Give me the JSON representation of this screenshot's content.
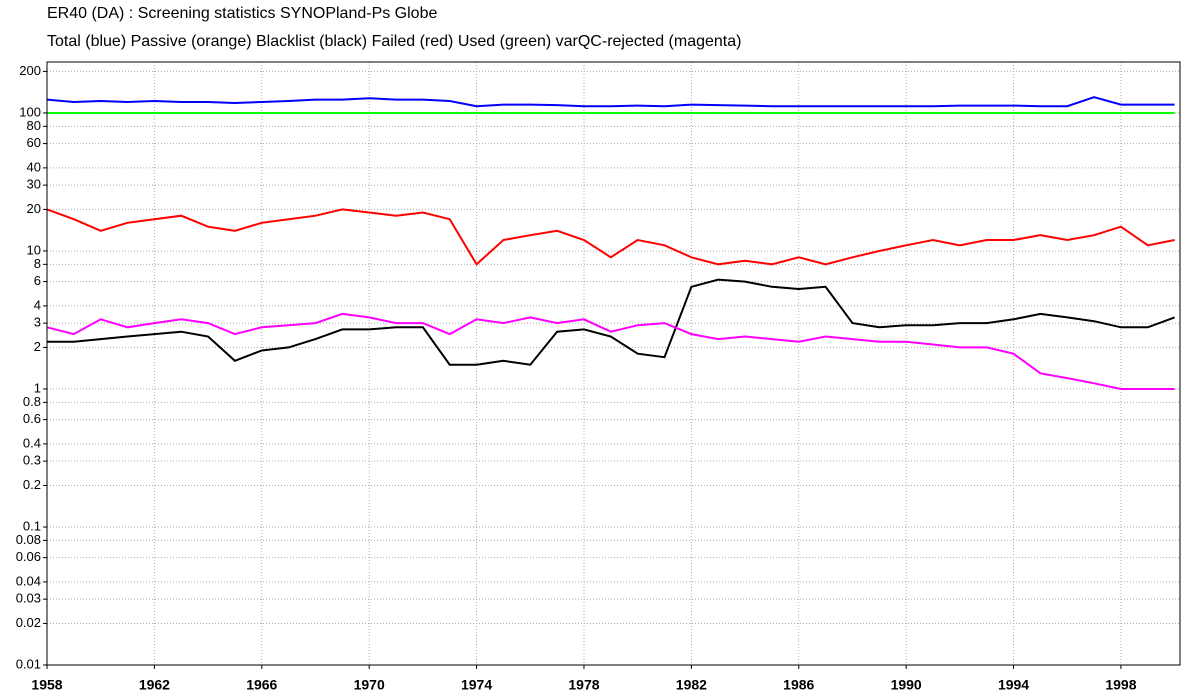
{
  "chart_data": {
    "type": "line",
    "title": "ER40 (DA)  : Screening statistics  SYNOPland-Ps  Globe",
    "subtitle": "Total (blue) Passive (orange) Blacklist (black) Failed (red) Used (green) varQC-rejected (magenta)",
    "x": [
      1958,
      1959,
      1960,
      1961,
      1962,
      1963,
      1964,
      1965,
      1966,
      1967,
      1968,
      1969,
      1970,
      1971,
      1972,
      1973,
      1974,
      1975,
      1976,
      1977,
      1978,
      1979,
      1980,
      1981,
      1982,
      1983,
      1984,
      1985,
      1986,
      1987,
      1988,
      1989,
      1990,
      1991,
      1992,
      1993,
      1994,
      1995,
      1996,
      1997,
      1998,
      1999,
      2000
    ],
    "series": [
      {
        "color": "#0000ff",
        "values": [
          125,
          120,
          122,
          120,
          122,
          120,
          120,
          118,
          120,
          122,
          125,
          125,
          128,
          125,
          125,
          122,
          112,
          115,
          115,
          114,
          112,
          112,
          113,
          112,
          115,
          114,
          113,
          112,
          112,
          112,
          112,
          112,
          112,
          112,
          113,
          113,
          113,
          112,
          112,
          130,
          115,
          115,
          115
        ]
      },
      {
        "color": "#00ff00",
        "values": [
          100,
          100,
          100,
          100,
          100,
          100,
          100,
          100,
          100,
          100,
          100,
          100,
          100,
          100,
          100,
          100,
          100,
          100,
          100,
          100,
          100,
          100,
          100,
          100,
          100,
          100,
          100,
          100,
          100,
          100,
          100,
          100,
          100,
          100,
          100,
          100,
          100,
          100,
          100,
          100,
          100,
          100,
          100
        ]
      },
      {
        "color": "#ff0000",
        "values": [
          20,
          17,
          14,
          16,
          17,
          18,
          15,
          14,
          16,
          17,
          18,
          20,
          19,
          18,
          19,
          17,
          8,
          12,
          13,
          14,
          12,
          9,
          12,
          11,
          9,
          8,
          8.5,
          8,
          9,
          8,
          9,
          10,
          11,
          12,
          11,
          12,
          12,
          13,
          12,
          13,
          15,
          11,
          12
        ]
      },
      {
        "color": "#000000",
        "values": [
          2.2,
          2.2,
          2.3,
          2.4,
          2.5,
          2.6,
          2.4,
          1.6,
          1.9,
          2.0,
          2.3,
          2.7,
          2.7,
          2.8,
          2.8,
          1.5,
          1.5,
          1.6,
          1.5,
          2.6,
          2.7,
          2.4,
          1.8,
          1.7,
          5.5,
          6.2,
          6,
          5.5,
          5.3,
          5.5,
          3,
          2.8,
          2.9,
          2.9,
          3,
          3,
          3.2,
          3.5,
          3.3,
          3.1,
          2.8,
          2.8,
          3.3
        ]
      },
      {
        "color": "#ff00ff",
        "values": [
          2.8,
          2.5,
          3.2,
          2.8,
          3,
          3.2,
          3,
          2.5,
          2.8,
          2.9,
          3,
          3.5,
          3.3,
          3,
          3,
          2.5,
          3.2,
          3,
          3.3,
          3,
          3.2,
          2.6,
          2.9,
          3,
          2.5,
          2.3,
          2.4,
          2.3,
          2.2,
          2.4,
          2.3,
          2.2,
          2.2,
          2.1,
          2.0,
          2.0,
          1.8,
          1.3,
          1.2,
          1.1,
          1.0,
          1.0,
          1.0
        ]
      }
    ],
    "xlim": [
      1958,
      2000.2
    ],
    "ylim": [
      0.01,
      234
    ],
    "xticks": [
      1958,
      1962,
      1966,
      1970,
      1974,
      1978,
      1982,
      1986,
      1990,
      1994,
      1998
    ],
    "yticks": [
      0.01,
      0.02,
      0.03,
      0.04,
      0.06,
      0.08,
      0.1,
      0.2,
      0.3,
      0.4,
      0.6,
      0.8,
      1,
      2,
      3,
      4,
      6,
      8,
      10,
      20,
      30,
      40,
      60,
      80,
      100,
      200
    ],
    "log_y": true,
    "grid": true
  }
}
